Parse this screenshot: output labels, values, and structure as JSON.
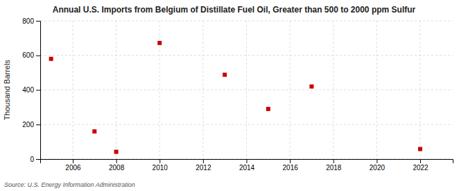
{
  "chart_data": {
    "type": "scatter",
    "title": "Annual U.S. Imports from Belgium of Distillate Fuel Oil, Greater than 500 to 2000 ppm Sulfur",
    "ylabel": "Thousand Barrels",
    "annotations": [
      "Source: U.S. Energy Information Administration"
    ],
    "x": [
      2005,
      2007,
      2008,
      2010,
      2013,
      2015,
      2017,
      2022
    ],
    "values": [
      580,
      160,
      42,
      672,
      488,
      290,
      420,
      58
    ],
    "color": "#cc0000",
    "marker": "square",
    "xlim": [
      2004.5,
      2023.5
    ],
    "ylim": [
      0,
      800
    ],
    "xticks": [
      2006,
      2008,
      2010,
      2012,
      2014,
      2016,
      2018,
      2020,
      2022
    ],
    "yticks": [
      0,
      200,
      400,
      600,
      800
    ],
    "grid": true
  }
}
